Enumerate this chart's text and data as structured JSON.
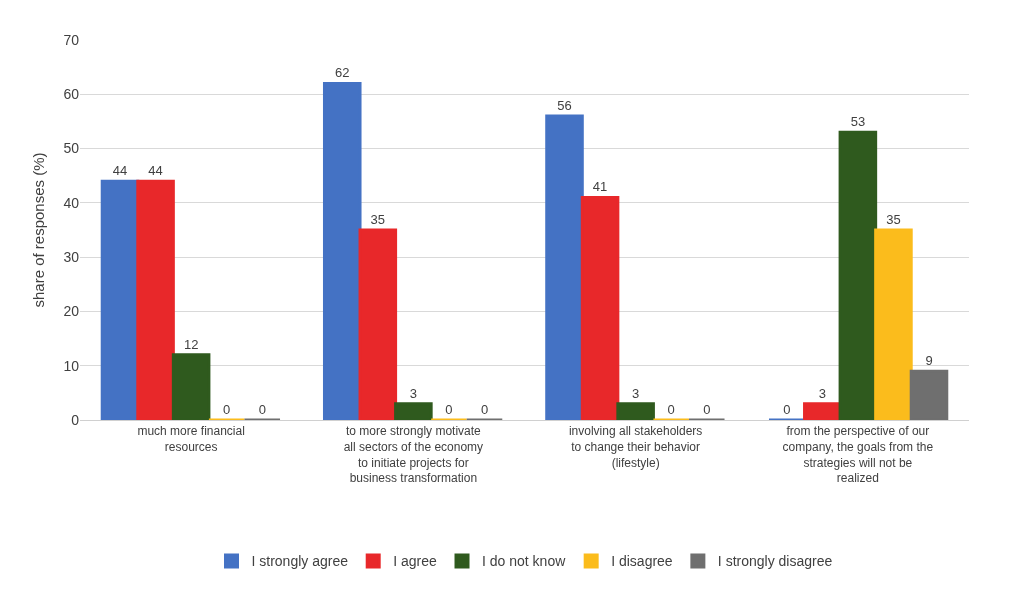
{
  "chart_data": {
    "type": "bar",
    "ylabel": "share of responses (%)",
    "categories": [
      "much more financial resources",
      "to more strongly motivate all sectors of the economy to initiate projects for business transformation",
      "involving all stakeholders to change their behavior (lifestyle)",
      "from the perspective of our company, the goals from the strategies will not be realized"
    ],
    "series": [
      {
        "name": "I strongly agree",
        "color": "#4472c4",
        "values": [
          44,
          62,
          56,
          0
        ]
      },
      {
        "name": "I agree",
        "color": "#e8282a",
        "values": [
          44,
          35,
          41,
          3
        ]
      },
      {
        "name": "I do not know",
        "color": "#2f5a1e",
        "values": [
          12,
          3,
          3,
          53
        ]
      },
      {
        "name": "I disagree",
        "color": "#fbbc1c",
        "values": [
          0,
          0,
          0,
          35
        ]
      },
      {
        "name": "I strongly disagree",
        "color": "#6f6f6f",
        "values": [
          0,
          0,
          0,
          9
        ]
      }
    ],
    "ylim": [
      0,
      70
    ],
    "yticks": [
      0,
      10,
      20,
      30,
      40,
      50,
      60,
      70
    ],
    "grid": "y",
    "legend": "bottom",
    "data_labels": true
  }
}
